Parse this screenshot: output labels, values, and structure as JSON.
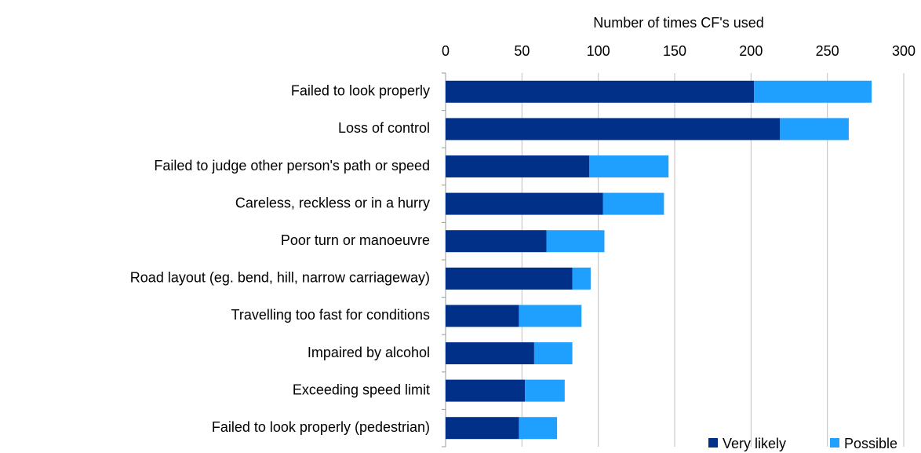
{
  "chart_data": {
    "type": "stacked-bar-horizontal",
    "x_label": "Number of times CF's used",
    "categories": [
      "Failed to look properly",
      "Loss of control",
      "Failed to judge other person's path or speed",
      "Careless, reckless or in a hurry",
      "Poor turn or manoeuvre",
      "Road layout (eg. bend, hill, narrow carriageway)",
      "Travelling too fast for conditions",
      "Impaired by alcohol",
      "Exceeding speed limit",
      "Failed to look properly (pedestrian)"
    ],
    "series": [
      {
        "name": "Very likely",
        "color": "#003087",
        "values": [
          202,
          219,
          94,
          103,
          66,
          83,
          48,
          58,
          52,
          48
        ]
      },
      {
        "name": "Possible",
        "color": "#1fa0ff",
        "values": [
          77,
          45,
          52,
          40,
          38,
          12,
          41,
          25,
          26,
          25
        ]
      }
    ],
    "xlim": [
      0,
      300
    ],
    "xticks": [
      0,
      50,
      100,
      150,
      200,
      250,
      300
    ],
    "grid": true,
    "legend": "bottom-right"
  }
}
